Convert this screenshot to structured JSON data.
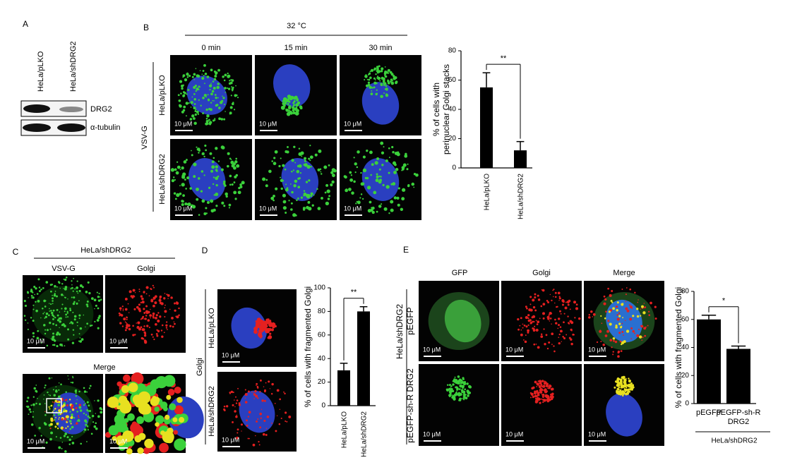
{
  "panels": {
    "A": {
      "letter": "A",
      "lanes": [
        "HeLa/pLKO",
        "HeLa/shDRG2"
      ],
      "bands": [
        "DRG2",
        "α-tubulin"
      ]
    },
    "B": {
      "letter": "B",
      "condition": "32 °C",
      "times": [
        "0 min",
        "15 min",
        "30 min"
      ],
      "rows": [
        "HeLa/pLKO",
        "HeLa/shDRG2"
      ],
      "stain": "VSV-G"
    },
    "C": {
      "letter": "C",
      "cell_line": "HeLa/shDRG2",
      "columns": [
        "VSV-G",
        "Golgi"
      ],
      "merge": "Merge"
    },
    "D": {
      "letter": "D",
      "rows": [
        "HeLa/pLKO",
        "HeLa/shDRG2"
      ],
      "stain": "Golgi"
    },
    "E": {
      "letter": "E",
      "columns": [
        "GFP",
        "Golgi",
        "Merge"
      ],
      "rows": [
        "pEGFP",
        "pEGFP-sh-R DRG2"
      ],
      "cell_line": "HeLa/shDRG2"
    }
  },
  "scale_bar": "10 μM",
  "chart_data": [
    {
      "type": "bar",
      "y_label": [
        "% of cells with",
        "perinuclear Golgi stacks"
      ],
      "categories": [
        "HeLa/pLKO",
        "HeLa/shDRG2"
      ],
      "values": [
        55,
        12
      ],
      "errors": [
        10,
        6
      ],
      "color": "#000000",
      "ylim": [
        0,
        80
      ],
      "yticks": [
        0,
        20,
        40,
        60,
        80
      ],
      "significance": "**"
    },
    {
      "type": "bar",
      "y_label": "% of cells with fragmented Golgi",
      "categories": [
        "HeLa/pLKO",
        "HeLa/shDRG2"
      ],
      "values": [
        30,
        80
      ],
      "errors": [
        6,
        4
      ],
      "color": "#000000",
      "ylim": [
        0,
        100
      ],
      "yticks": [
        0,
        20,
        40,
        60,
        80,
        100
      ],
      "significance": "**"
    },
    {
      "type": "bar",
      "y_label": "% of cells with fragmented Golgi",
      "categories": [
        "pEGFP",
        "pEGFP-sh-R DRG2"
      ],
      "values": [
        60,
        39
      ],
      "errors": [
        3,
        2
      ],
      "color": "#000000",
      "ylim": [
        0,
        80
      ],
      "yticks": [
        0,
        20,
        40,
        60,
        80
      ],
      "significance": "*",
      "group_label": "HeLa/shDRG2"
    }
  ]
}
